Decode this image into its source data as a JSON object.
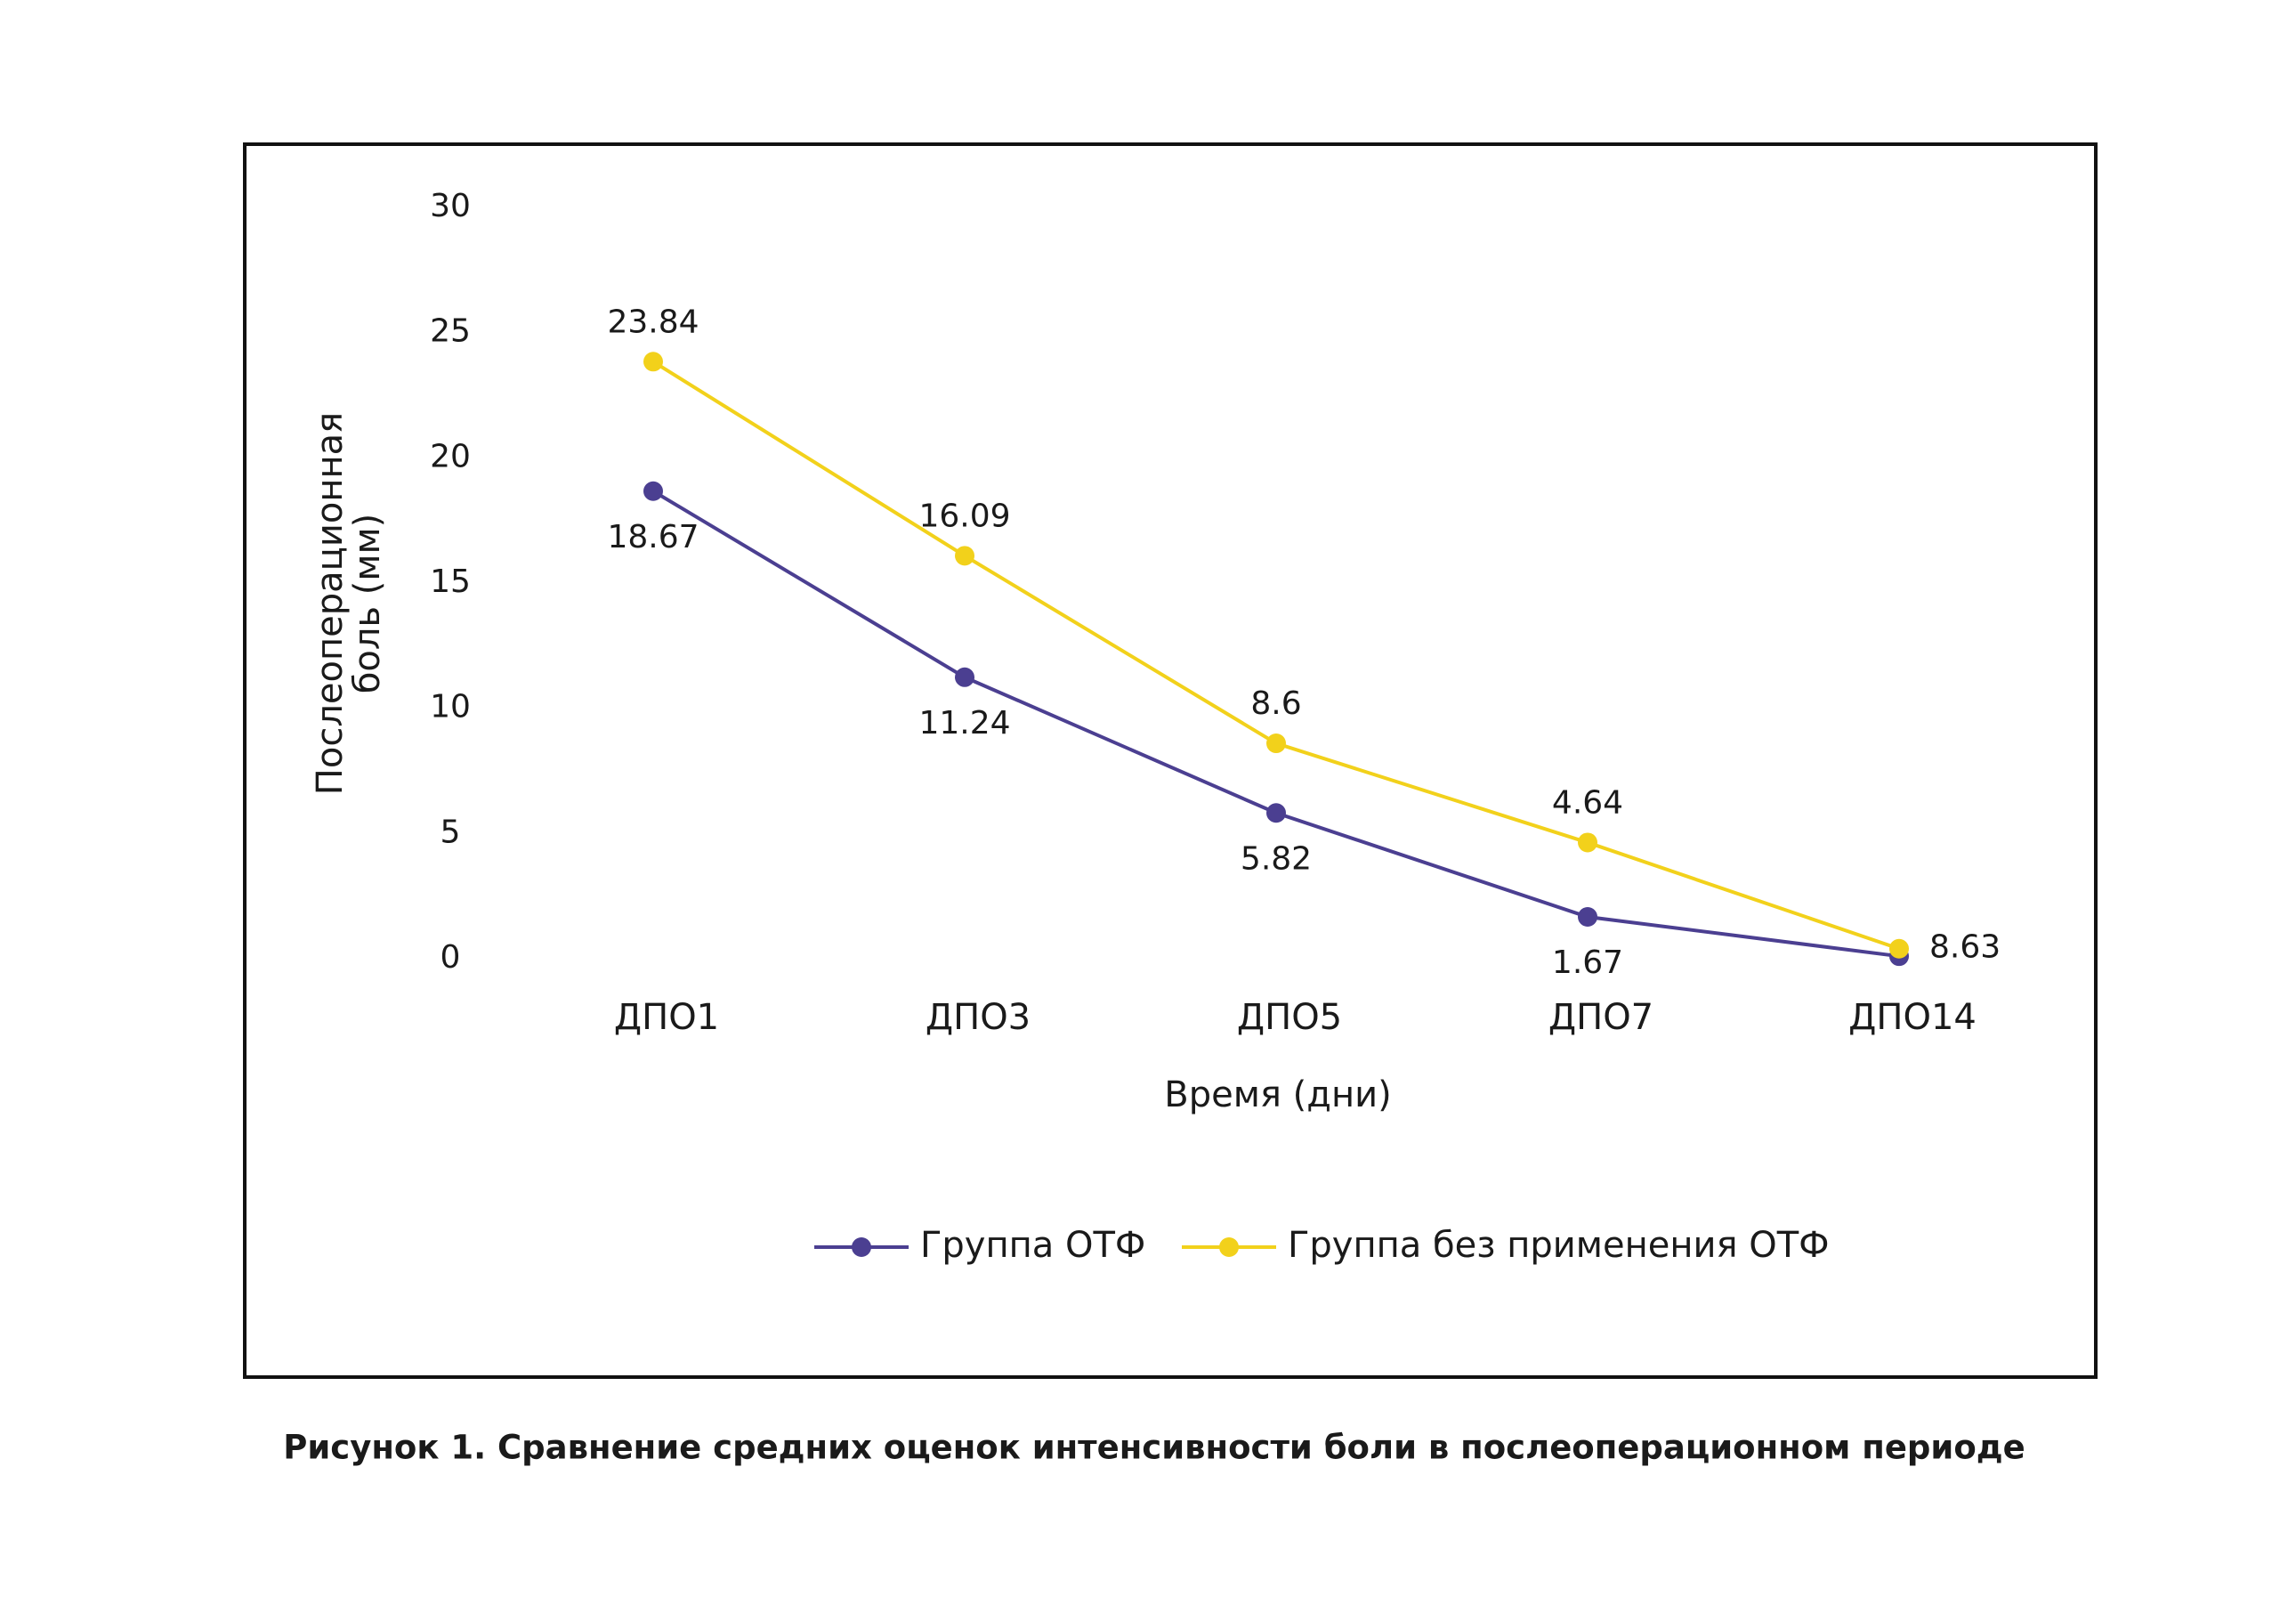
{
  "chart_data": {
    "type": "line",
    "ylabel": [
      "Послеоперационная",
      "боль (мм)"
    ],
    "xlabel": "Время (дни)",
    "caption": "Рисунок 1. Сравнение средних оценок интенсивности боли в послеоперационном периоде",
    "categories": [
      "ДПО1",
      "ДПО3",
      "ДПО5",
      "ДПО7",
      "ДПО14"
    ],
    "series": [
      {
        "name": "Группа ОТФ",
        "color": "#4b3f91",
        "values": [
          18.67,
          11.24,
          5.82,
          1.67,
          0.1
        ],
        "value_labels": [
          "18.67",
          "11.24",
          "5.82",
          "1.67",
          null
        ]
      },
      {
        "name": "Группа без применения ОТФ",
        "color": "#f2d11b",
        "values": [
          23.84,
          16.09,
          8.6,
          4.64,
          0.4
        ],
        "value_labels": [
          "23.84",
          "16.09",
          "8.6",
          "4.64",
          null
        ]
      }
    ],
    "annotations": [
      "8.63"
    ],
    "ylim": [
      0,
      30
    ],
    "yticks": [
      0,
      5,
      10,
      15,
      20,
      25,
      30
    ],
    "grid": false,
    "legend": "bottom"
  }
}
